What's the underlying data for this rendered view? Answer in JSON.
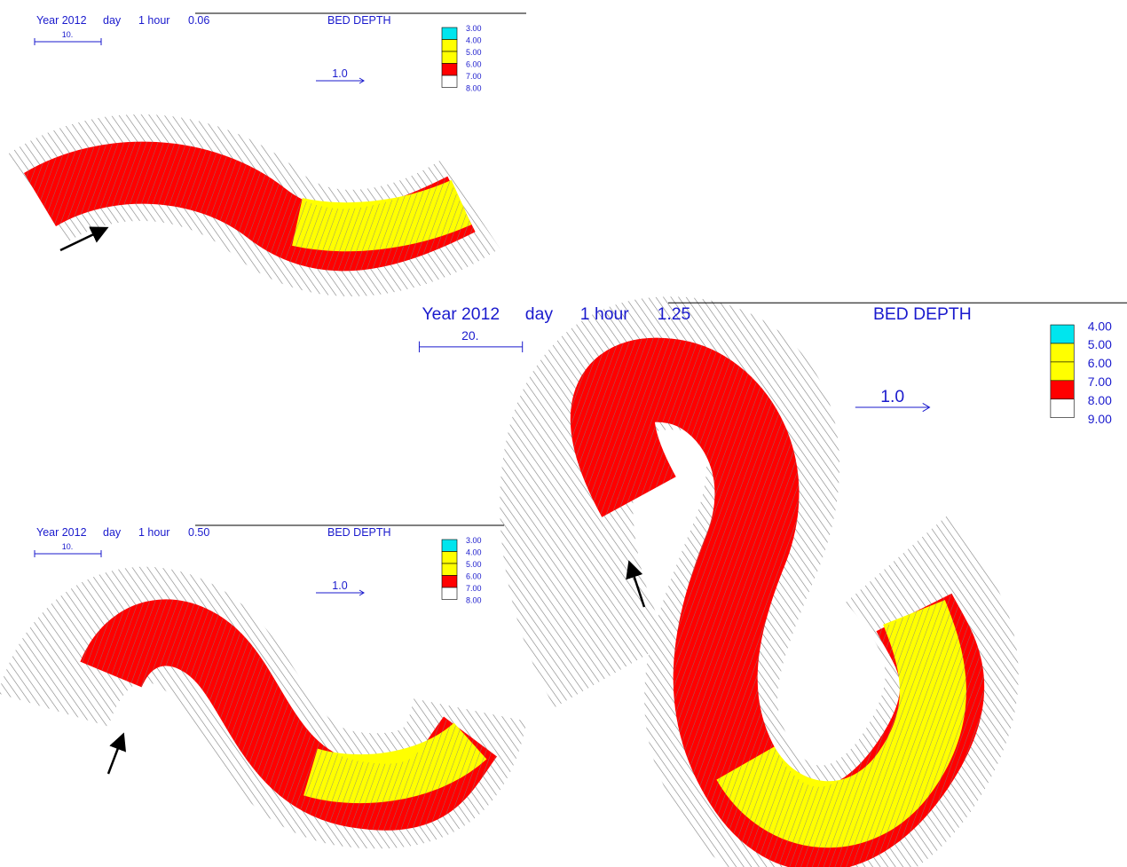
{
  "panels": [
    {
      "header": {
        "year": "Year 2012",
        "day": "day",
        "hour": "1 hour",
        "time": "0.06",
        "title": "BED DEPTH"
      },
      "scale_bar": "10.",
      "vector_scale": "1.0",
      "legend": {
        "labels": [
          "3.00",
          "4.00",
          "5.00",
          "6.00",
          "7.00",
          "8.00"
        ],
        "colors": [
          "#00e5ee",
          "#ffff00",
          "#ffff00",
          "#ff0000",
          "#ffffff"
        ]
      }
    },
    {
      "header": {
        "year": "Year 2012",
        "day": "day",
        "hour": "1 hour",
        "time": "0.50",
        "title": "BED DEPTH"
      },
      "scale_bar": "10.",
      "vector_scale": "1.0",
      "legend": {
        "labels": [
          "3.00",
          "4.00",
          "5.00",
          "6.00",
          "7.00",
          "8.00"
        ],
        "colors": [
          "#00e5ee",
          "#ffff00",
          "#ffff00",
          "#ff0000",
          "#ffffff"
        ]
      }
    },
    {
      "header": {
        "year": "Year 2012",
        "day": "day",
        "hour": "1 hour",
        "time": "1.25",
        "title": "BED DEPTH"
      },
      "scale_bar": "20.",
      "vector_scale": "1.0",
      "legend": {
        "labels": [
          "4.00",
          "5.00",
          "6.00",
          "7.00",
          "8.00",
          "9.00"
        ],
        "colors": [
          "#00e5ee",
          "#ffff00",
          "#ffff00",
          "#ff0000",
          "#ffffff"
        ]
      }
    }
  ]
}
